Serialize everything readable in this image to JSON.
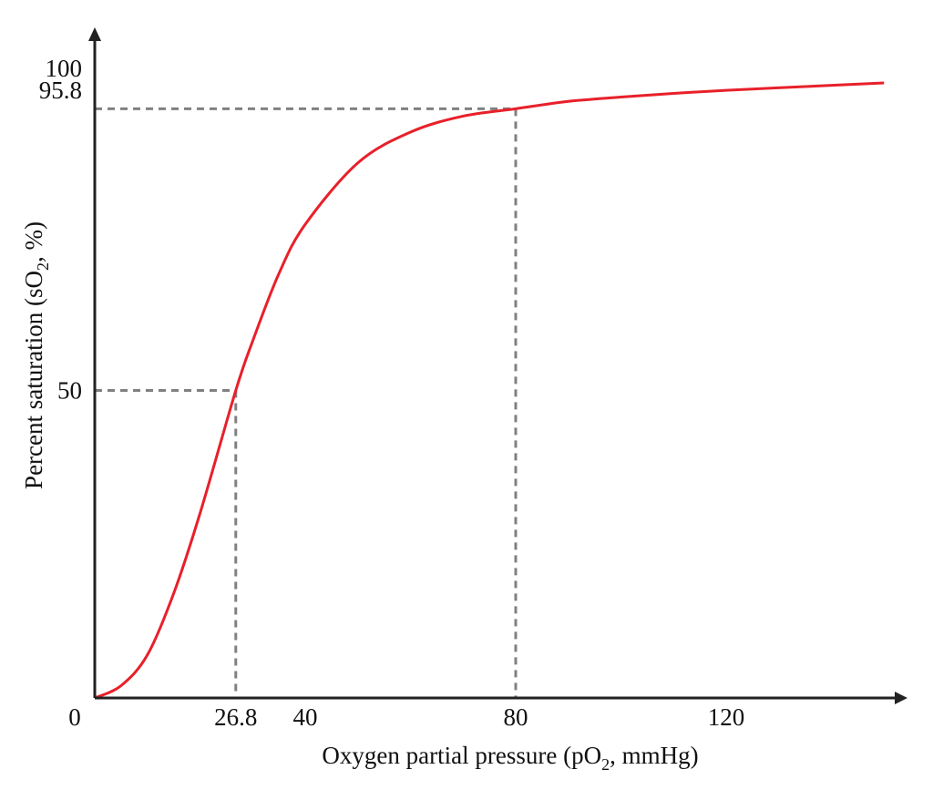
{
  "chart_data": {
    "type": "line",
    "title": "",
    "xlabel": {
      "main": "Oxygen partial pressure (pO",
      "sub": "2",
      "rest": ", mmHg)"
    },
    "ylabel": {
      "main": "Percent saturation (sO",
      "sub": "2",
      "rest": ", %)"
    },
    "xlim": [
      0,
      155
    ],
    "ylim": [
      0,
      100
    ],
    "x_ticks": [
      0,
      26.8,
      40,
      80,
      120
    ],
    "x_tick_labels": [
      "0",
      "26.8",
      "40",
      "80",
      "120"
    ],
    "y_ticks": [
      50,
      95.8,
      100
    ],
    "y_tick_labels": [
      "50",
      "95.8",
      "100"
    ],
    "grid": false,
    "series": [
      {
        "color": "#e8202a",
        "x": [
          0,
          5,
          10,
          15,
          20,
          26.8,
          30,
          35,
          40,
          50,
          60,
          70,
          80,
          90,
          100,
          110,
          120,
          135,
          150
        ],
        "y": [
          0,
          2,
          7,
          17,
          30,
          50,
          58,
          69,
          77,
          87,
          92,
          94.6,
          95.8,
          97,
          97.7,
          98.3,
          98.8,
          99.4,
          100
        ]
      }
    ],
    "reference_lines": [
      {
        "x": 26.8,
        "y": 50
      },
      {
        "x": 80,
        "y": 95.8
      }
    ],
    "reference_line_color": "#808080",
    "axis_color": "#222222"
  }
}
